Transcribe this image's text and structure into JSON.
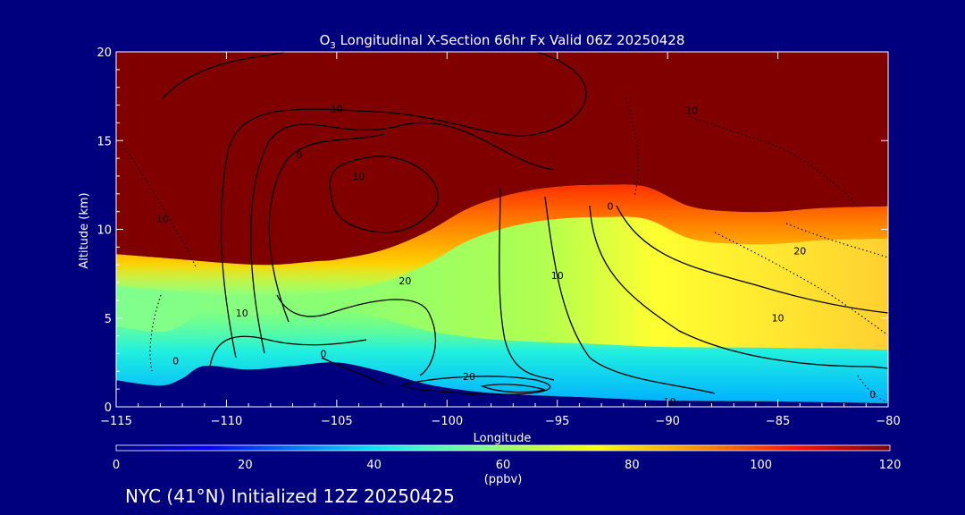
{
  "chart_data": {
    "type": "heatmap",
    "title_prefix": "O",
    "title_sub": "3",
    "title_rest": " Longitudinal X-Section 66hr  Fx Valid 06Z 20250428",
    "xlabel": "Longitude",
    "ylabel": "Altitude (km)",
    "xlim": [
      -115,
      -80
    ],
    "ylim": [
      0,
      20
    ],
    "x_ticks": [
      -115,
      -110,
      -105,
      -100,
      -95,
      -90,
      -85,
      -80
    ],
    "x_tick_labels": [
      "−115",
      "−110",
      "−105",
      "−100",
      "−95",
      "−90",
      "−85",
      "−80"
    ],
    "y_ticks": [
      0,
      5,
      10,
      15,
      20
    ],
    "y_tick_labels": [
      "0",
      "5",
      "10",
      "15",
      "20"
    ],
    "colorbar": {
      "range": [
        0,
        120
      ],
      "ticks": [
        0,
        20,
        40,
        60,
        80,
        100,
        120
      ],
      "tick_labels": [
        "0",
        "20",
        "40",
        "60",
        "80",
        "100",
        "120"
      ],
      "unit": "(ppbv)"
    },
    "tropopause_height_km": [
      [
        -115,
        8.6
      ],
      [
        -112,
        8.3
      ],
      [
        -110,
        8.1
      ],
      [
        -108,
        8.0
      ],
      [
        -106,
        8.2
      ],
      [
        -105,
        8.3
      ],
      [
        -103,
        8.8
      ],
      [
        -101,
        9.8
      ],
      [
        -99,
        11.2
      ],
      [
        -97,
        12.0
      ],
      [
        -95,
        12.4
      ],
      [
        -93,
        12.5
      ],
      [
        -91,
        12.4
      ],
      [
        -89,
        11.3
      ],
      [
        -87,
        11.0
      ],
      [
        -85,
        11.0
      ],
      [
        -83,
        11.2
      ],
      [
        -80,
        11.3
      ]
    ],
    "terrain_height_km": [
      [
        -115,
        1.5
      ],
      [
        -113,
        1.2
      ],
      [
        -112,
        1.6
      ],
      [
        -111,
        2.3
      ],
      [
        -109,
        2.1
      ],
      [
        -107,
        2.3
      ],
      [
        -105,
        2.5
      ],
      [
        -103,
        2.0
      ],
      [
        -101,
        1.3
      ],
      [
        -99,
        0.9
      ],
      [
        -97,
        0.7
      ],
      [
        -95,
        0.6
      ],
      [
        -93,
        0.5
      ],
      [
        -90,
        0.35
      ],
      [
        -85,
        0.3
      ],
      [
        -80,
        0.2
      ]
    ],
    "contour_labels": [
      {
        "text": "10",
        "lon": -105.0,
        "alt": 16.6
      },
      {
        "text": "0",
        "lon": -106.7,
        "alt": 14.0
      },
      {
        "text": "10",
        "lon": -104.0,
        "alt": 12.8
      },
      {
        "text": "10",
        "lon": -88.9,
        "alt": 16.5
      },
      {
        "text": "0",
        "lon": -92.6,
        "alt": 11.1
      },
      {
        "text": "10",
        "lon": -112.9,
        "alt": 10.4
      },
      {
        "text": "20",
        "lon": -101.9,
        "alt": 6.9
      },
      {
        "text": "10",
        "lon": -95.0,
        "alt": 7.2
      },
      {
        "text": "10",
        "lon": -109.3,
        "alt": 5.1
      },
      {
        "text": "20",
        "lon": -84.0,
        "alt": 8.6
      },
      {
        "text": "10",
        "lon": -85.0,
        "alt": 4.8
      },
      {
        "text": "0",
        "lon": -112.3,
        "alt": 2.4
      },
      {
        "text": "0",
        "lon": -105.6,
        "alt": 2.8
      },
      {
        "text": "20",
        "lon": -99.0,
        "alt": 1.5
      },
      {
        "text": "10",
        "lon": -89.9,
        "alt": 0.1
      },
      {
        "text": "0",
        "lon": -80.7,
        "alt": 0.5
      }
    ]
  },
  "footer": "NYC (41°N) Initialized 12Z 20250425"
}
